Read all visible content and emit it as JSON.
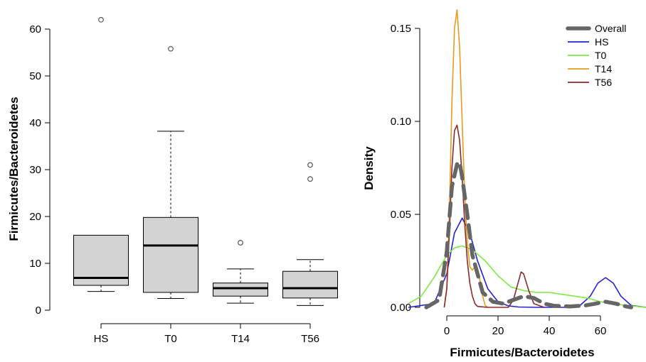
{
  "chart_data": [
    {
      "type": "box",
      "title": "",
      "xlabel": "",
      "ylabel": "Firmicutes/Bacteroidetes",
      "ylim": [
        0,
        62
      ],
      "yticks": [
        0,
        10,
        20,
        30,
        40,
        50,
        60
      ],
      "categories": [
        "HS",
        "T0",
        "T14",
        "T56"
      ],
      "boxes": [
        {
          "label": "HS",
          "whisker_low": 4.0,
          "q1": 5.3,
          "median": 6.9,
          "q3": 16.0,
          "whisker_high": 16.0,
          "outliers": [
            62.0
          ]
        },
        {
          "label": "T0",
          "whisker_low": 2.5,
          "q1": 3.8,
          "median": 13.8,
          "q3": 19.8,
          "whisker_high": 38.2,
          "outliers": [
            55.8
          ]
        },
        {
          "label": "T14",
          "whisker_low": 1.5,
          "q1": 3.0,
          "median": 4.7,
          "q3": 5.8,
          "whisker_high": 8.8,
          "outliers": [
            14.4
          ]
        },
        {
          "label": "T56",
          "whisker_low": 1.0,
          "q1": 2.6,
          "median": 4.7,
          "q3": 8.3,
          "whisker_high": 10.8,
          "outliers": [
            28.0,
            31.0
          ]
        }
      ],
      "box_fill": "#d3d3d3",
      "grid": false
    },
    {
      "type": "line",
      "title": "",
      "xlabel": "Firmicutes/Bacteroidetes",
      "ylabel": "Density",
      "xlim": [
        -15,
        78
      ],
      "ylim": [
        0,
        0.16
      ],
      "xticks": [
        0,
        20,
        40,
        60
      ],
      "ytick_labels": [
        "0.00",
        "0.05",
        "0.10",
        "0.15"
      ],
      "grid": false,
      "legend_position": "top-right",
      "series": [
        {
          "name": "Overall",
          "color": "#666666",
          "style": "dashed-thick",
          "x": [
            -8,
            -3,
            0,
            2,
            4,
            5,
            6,
            8,
            10,
            14,
            18,
            22,
            26,
            30,
            34,
            38,
            42,
            48,
            54,
            58,
            62,
            66,
            70,
            72
          ],
          "y": [
            0.0,
            0.004,
            0.03,
            0.065,
            0.077,
            0.078,
            0.07,
            0.05,
            0.028,
            0.008,
            0.003,
            0.002,
            0.004,
            0.006,
            0.005,
            0.002,
            0.0008,
            0.0005,
            0.001,
            0.002,
            0.003,
            0.002,
            0.0005,
            0.0
          ]
        },
        {
          "name": "HS",
          "color": "#2323d4",
          "style": "solid",
          "x": [
            -15,
            -5,
            0,
            3,
            6,
            9,
            12,
            16,
            20,
            24,
            28,
            35,
            40,
            46,
            52,
            56,
            59,
            62,
            65,
            68,
            72,
            78
          ],
          "y": [
            0.0,
            0.002,
            0.018,
            0.04,
            0.048,
            0.04,
            0.025,
            0.01,
            0.003,
            0.0008,
            0.0002,
            0.0,
            0.0,
            0.0,
            0.001,
            0.006,
            0.013,
            0.016,
            0.013,
            0.006,
            0.001,
            0.0
          ]
        },
        {
          "name": "T0",
          "color": "#7ee844",
          "style": "solid",
          "x": [
            -15,
            -10,
            -5,
            0,
            3,
            6,
            10,
            15,
            20,
            25,
            30,
            35,
            40,
            45,
            50,
            55,
            60,
            65,
            70,
            78
          ],
          "y": [
            0.002,
            0.006,
            0.016,
            0.028,
            0.032,
            0.033,
            0.031,
            0.025,
            0.017,
            0.011,
            0.009,
            0.008,
            0.008,
            0.007,
            0.006,
            0.005,
            0.003,
            0.002,
            0.001,
            0.0
          ]
        },
        {
          "name": "T14",
          "color": "#e69a1e",
          "style": "solid",
          "x": [
            -1,
            0,
            1,
            2,
            3,
            4,
            5,
            6,
            7,
            8,
            9,
            10,
            11,
            12,
            13,
            14,
            15,
            16
          ],
          "y": [
            0.0,
            0.01,
            0.05,
            0.11,
            0.15,
            0.16,
            0.14,
            0.1,
            0.06,
            0.035,
            0.022,
            0.02,
            0.022,
            0.021,
            0.014,
            0.006,
            0.001,
            0.0
          ]
        },
        {
          "name": "T56",
          "color": "#8b2a2a",
          "style": "solid",
          "x": [
            -1,
            0,
            1,
            2,
            3,
            4,
            5,
            6,
            7,
            8,
            9,
            10,
            11,
            12,
            16,
            20,
            24,
            26,
            28,
            29,
            30,
            32,
            34,
            38
          ],
          "y": [
            0.0,
            0.01,
            0.04,
            0.075,
            0.095,
            0.098,
            0.09,
            0.07,
            0.045,
            0.025,
            0.013,
            0.006,
            0.002,
            0.0005,
            0.0,
            0.0,
            0.0,
            0.004,
            0.014,
            0.019,
            0.018,
            0.009,
            0.002,
            0.0
          ]
        }
      ]
    }
  ]
}
